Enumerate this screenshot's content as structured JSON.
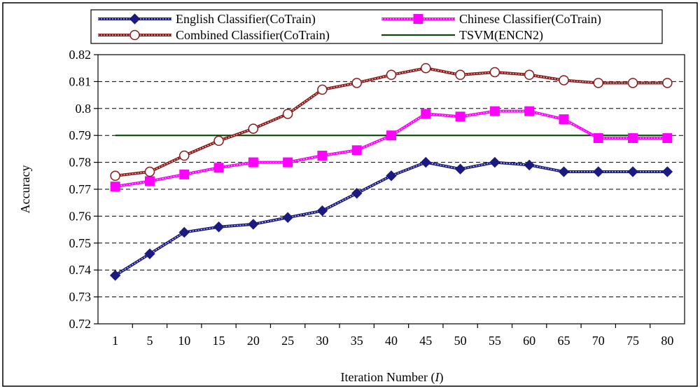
{
  "chart_data": {
    "type": "line",
    "xlabel": "Iteration Number (",
    "xlabel_var": "I",
    "xlabel_suffix": ")",
    "ylabel": "Accuracy",
    "categories": [
      "1",
      "5",
      "10",
      "15",
      "20",
      "25",
      "30",
      "35",
      "40",
      "45",
      "50",
      "55",
      "60",
      "65",
      "70",
      "75",
      "80"
    ],
    "ylim": [
      0.72,
      0.82
    ],
    "yticks": [
      "0.72",
      "0.73",
      "0.74",
      "0.75",
      "0.76",
      "0.77",
      "0.78",
      "0.79",
      "0.8",
      "0.81",
      "0.82"
    ],
    "grid": "horizontal dashed",
    "legend_position": "top",
    "series": [
      {
        "name": "English Classifier(CoTrain)",
        "marker": "diamond",
        "color": "#1a1a80",
        "values": [
          0.738,
          0.746,
          0.754,
          0.756,
          0.757,
          0.7595,
          0.762,
          0.7685,
          0.775,
          0.78,
          0.7775,
          0.78,
          0.779,
          0.7765,
          0.7765,
          0.7765,
          0.7765
        ]
      },
      {
        "name": "Chinese Classifier(CoTrain)",
        "marker": "square",
        "color": "#ff00ff",
        "values": [
          0.771,
          0.773,
          0.7755,
          0.778,
          0.78,
          0.78,
          0.7825,
          0.7845,
          0.79,
          0.798,
          0.797,
          0.799,
          0.799,
          0.796,
          0.789,
          0.789,
          0.789
        ]
      },
      {
        "name": "Combined Classifier(CoTrain)",
        "marker": "circle",
        "color": "#8b1a1a",
        "values": [
          0.775,
          0.7765,
          0.7825,
          0.788,
          0.7925,
          0.798,
          0.807,
          0.8095,
          0.8125,
          0.815,
          0.8125,
          0.8135,
          0.8125,
          0.8105,
          0.8095,
          0.8095,
          0.8095
        ]
      },
      {
        "name": "TSVM(ENCN2)",
        "marker": "none",
        "color": "#0a4a0a",
        "values": [
          0.79,
          0.79,
          0.79,
          0.79,
          0.79,
          0.79,
          0.79,
          0.79,
          0.79,
          0.79,
          0.79,
          0.79,
          0.79,
          0.79,
          0.79,
          0.79,
          0.79
        ]
      }
    ]
  }
}
